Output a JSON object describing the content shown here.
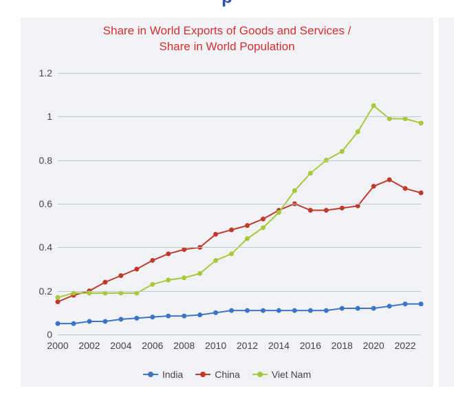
{
  "layout": {
    "panel_bg": "#f0f2f5",
    "grid_color": "#bfc6d0",
    "axis_text_color": "#444444",
    "axis_fontsize": 14,
    "title_color": "#d32f2f",
    "title_fontsize": 17,
    "big_letter": "p",
    "big_letter_color": "#324ea8"
  },
  "chart": {
    "type": "line",
    "title": "Share in World Exports of Goods and Services /\nShare in World Population",
    "ylim": [
      0,
      1.2
    ],
    "yticks": [
      0,
      0.2,
      0.4,
      0.6,
      0.8,
      1,
      1.2
    ],
    "x_labels_shown": [
      "2000",
      "2002",
      "2004",
      "2006",
      "2008",
      "2010",
      "2012",
      "2014",
      "2016",
      "2018",
      "2020",
      "2022"
    ],
    "x_values": [
      2000,
      2001,
      2002,
      2003,
      2004,
      2005,
      2006,
      2007,
      2008,
      2009,
      2010,
      2011,
      2012,
      2013,
      2014,
      2015,
      2016,
      2017,
      2018,
      2019,
      2020,
      2021,
      2022,
      2023
    ],
    "marker_radius": 3.5,
    "line_width": 2,
    "series": [
      {
        "name": "India",
        "color": "#3b74c4",
        "values": [
          0.05,
          0.05,
          0.06,
          0.06,
          0.07,
          0.075,
          0.08,
          0.085,
          0.085,
          0.09,
          0.1,
          0.11,
          0.11,
          0.11,
          0.11,
          0.11,
          0.11,
          0.11,
          0.12,
          0.12,
          0.12,
          0.13,
          0.14,
          0.14
        ]
      },
      {
        "name": "China",
        "color": "#c0392b",
        "values": [
          0.15,
          0.18,
          0.2,
          0.24,
          0.27,
          0.3,
          0.34,
          0.37,
          0.39,
          0.4,
          0.46,
          0.48,
          0.5,
          0.53,
          0.57,
          0.6,
          0.57,
          0.57,
          0.58,
          0.59,
          0.68,
          0.71,
          0.67,
          0.65
        ]
      },
      {
        "name": "Viet Nam",
        "color": "#a6c839",
        "values": [
          0.17,
          0.19,
          0.19,
          0.19,
          0.19,
          0.19,
          0.23,
          0.25,
          0.26,
          0.28,
          0.34,
          0.37,
          0.44,
          0.49,
          0.56,
          0.66,
          0.74,
          0.8,
          0.84,
          0.93,
          1.05,
          0.99,
          0.99,
          0.97
        ]
      }
    ],
    "legend_position": "bottom"
  }
}
